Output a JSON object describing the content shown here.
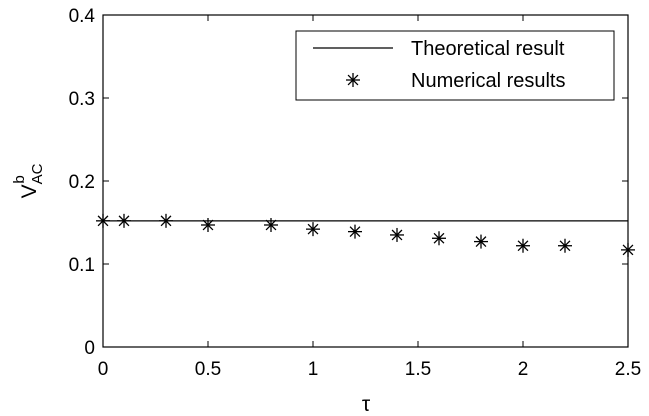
{
  "chart_data": {
    "type": "scatter",
    "xlabel": "τ",
    "ylabel": {
      "base": "V",
      "sup": "b",
      "sub": "AC"
    },
    "xlim": [
      0,
      2.5
    ],
    "ylim": [
      0,
      0.4
    ],
    "xticks": [
      0,
      0.5,
      1,
      1.5,
      2,
      2.5
    ],
    "xtick_labels": [
      "0",
      "0.5",
      "1",
      "1.5",
      "2",
      "2.5"
    ],
    "yticks": [
      0,
      0.1,
      0.2,
      0.3,
      0.4
    ],
    "ytick_labels": [
      "0",
      "0.1",
      "0.2",
      "0.3",
      "0.4"
    ],
    "grid": false,
    "legend_position": "top-right",
    "series": [
      {
        "name": "Theoretical result",
        "kind": "line",
        "color": "#000000",
        "x": [
          0,
          2.5
        ],
        "y": [
          0.152,
          0.152
        ]
      },
      {
        "name": "Numerical results",
        "kind": "marker",
        "marker": "asterisk",
        "color": "#000000",
        "x": [
          0,
          0.1,
          0.3,
          0.5,
          0.8,
          1.0,
          1.2,
          1.4,
          1.6,
          1.8,
          2.0,
          2.2,
          2.5
        ],
        "y": [
          0.152,
          0.152,
          0.152,
          0.147,
          0.147,
          0.142,
          0.139,
          0.135,
          0.131,
          0.127,
          0.122,
          0.122,
          0.117
        ]
      }
    ]
  }
}
